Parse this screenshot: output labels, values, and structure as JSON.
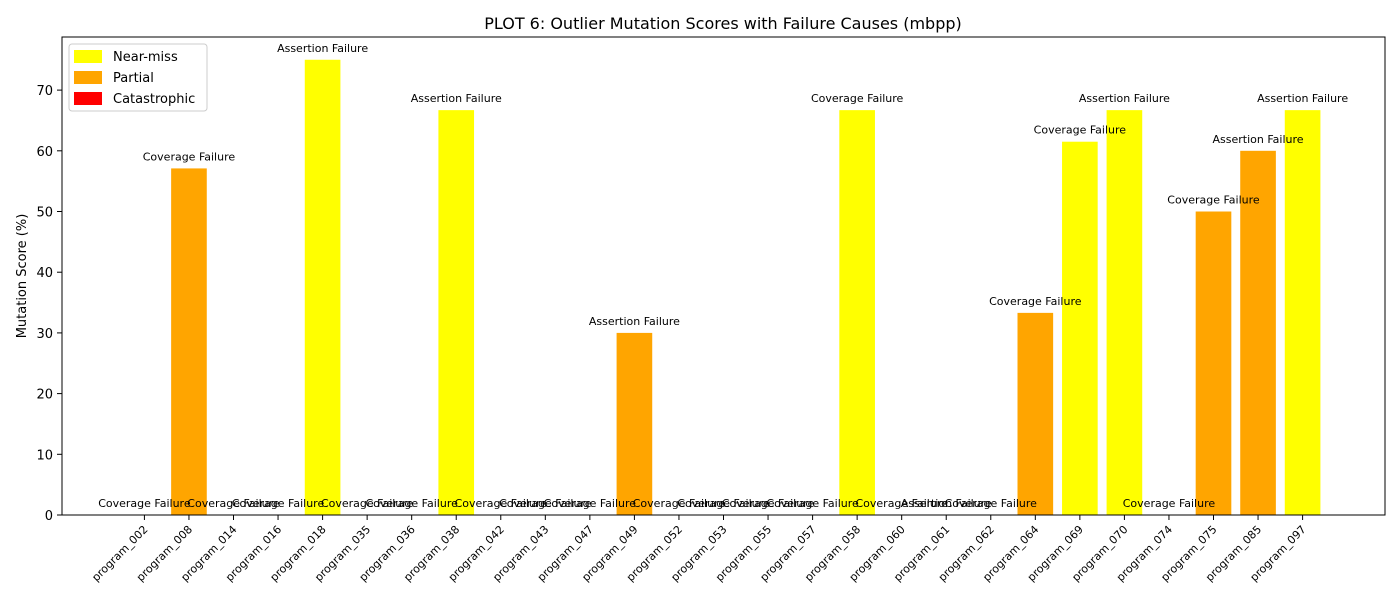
{
  "chart_data": {
    "type": "bar",
    "title": "PLOT 6: Outlier Mutation Scores with Failure Causes (mbpp)",
    "xlabel": "",
    "ylabel": "Mutation Score (%)",
    "ylim": [
      0,
      78.75
    ],
    "yticks": [
      0,
      10,
      20,
      30,
      40,
      50,
      60,
      70
    ],
    "grid": false,
    "legend_position": "top-left",
    "legend": [
      {
        "label": "Near-miss",
        "color": "#ffff00"
      },
      {
        "label": "Partial",
        "color": "#ffa500"
      },
      {
        "label": "Catastrophic",
        "color": "#ff0000"
      }
    ],
    "categories": [
      "program_002",
      "program_008",
      "program_014",
      "program_016",
      "program_018",
      "program_035",
      "program_036",
      "program_038",
      "program_042",
      "program_043",
      "program_047",
      "program_049",
      "program_052",
      "program_053",
      "program_055",
      "program_057",
      "program_058",
      "program_060",
      "program_061",
      "program_062",
      "program_064",
      "program_069",
      "program_070",
      "program_074",
      "program_075",
      "program_085",
      "program_097"
    ],
    "values": [
      0,
      57.1,
      0,
      0,
      75.0,
      0,
      0,
      66.7,
      0,
      0,
      0,
      30.0,
      0,
      0,
      0,
      0,
      66.7,
      0,
      0,
      0,
      33.3,
      61.5,
      66.7,
      0,
      50.0,
      60.0,
      66.7
    ],
    "bar_colors": [
      "#ff0000",
      "#ffa500",
      "#ff0000",
      "#ff0000",
      "#ffff00",
      "#ff0000",
      "#ff0000",
      "#ffff00",
      "#ff0000",
      "#ff0000",
      "#ff0000",
      "#ffa500",
      "#ff0000",
      "#ff0000",
      "#ff0000",
      "#ff0000",
      "#ffff00",
      "#ff0000",
      "#ff0000",
      "#ff0000",
      "#ffa500",
      "#ffff00",
      "#ffff00",
      "#ff0000",
      "#ffa500",
      "#ffa500",
      "#ffff00"
    ],
    "annotations": [
      "Coverage Failure",
      "Coverage Failure",
      "Coverage Failure",
      "Coverage Failure",
      "Assertion Failure",
      "Coverage Failure",
      "Coverage Failure",
      "Assertion Failure",
      "Coverage Failure",
      "Coverage Failure",
      "Coverage Failure",
      "Assertion Failure",
      "Coverage Failure",
      "Coverage Failure",
      "Coverage Failure",
      "Coverage Failure",
      "Coverage Failure",
      "Coverage Failure",
      "Assertion Failure",
      "Coverage Failure",
      "Coverage Failure",
      "Coverage Failure",
      "Assertion Failure",
      "Coverage Failure",
      "Coverage Failure",
      "Assertion Failure",
      "Assertion Failure"
    ]
  }
}
